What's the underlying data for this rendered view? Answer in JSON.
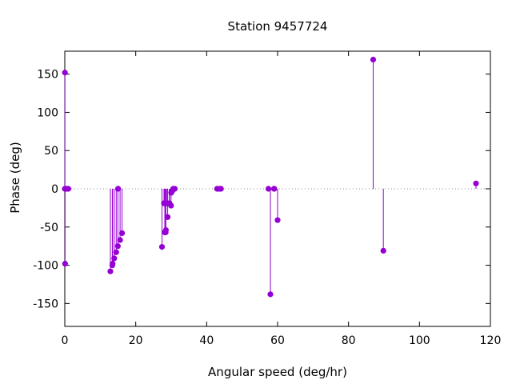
{
  "chart_data": {
    "type": "scatter",
    "style": "impulses-with-points",
    "title": "Station 9457724",
    "xlabel": "Angular speed (deg/hr)",
    "ylabel": "Phase (deg)",
    "xlim": [
      0,
      120
    ],
    "ylim": [
      -180,
      180
    ],
    "xticks": [
      0,
      20,
      40,
      60,
      80,
      100,
      120
    ],
    "yticks": [
      -150,
      -100,
      -50,
      0,
      50,
      100,
      150
    ],
    "grid": false,
    "zero_line": "dotted",
    "series": [
      {
        "color": "#9400d3",
        "x": [
          0.0,
          0.04,
          0.08,
          0.5,
          0.6,
          1.0,
          12.85,
          13.4,
          13.47,
          13.94,
          14.5,
          14.96,
          15.0,
          15.04,
          15.59,
          16.14,
          27.4,
          27.97,
          28.0,
          28.2,
          28.44,
          28.51,
          28.7,
          29.0,
          29.46,
          29.53,
          29.96,
          30.0,
          30.04,
          30.41,
          30.55,
          31.02,
          42.93,
          43.48,
          43.95,
          44.03,
          57.42,
          57.97,
          58.98,
          59.07,
          60.0,
          86.95,
          89.82,
          115.94
        ],
        "y": [
          0,
          152,
          -98,
          0,
          0,
          0,
          -108,
          -100,
          -98,
          -91,
          -83,
          -75,
          0,
          0,
          -67,
          -58,
          -76,
          -19,
          -19,
          -57,
          -57,
          -54,
          -19,
          -37,
          -19,
          -19,
          -22,
          -5,
          -5,
          -2,
          0,
          0,
          0,
          0,
          0,
          0,
          0,
          -138,
          0,
          0,
          -41,
          169,
          -81,
          7
        ]
      }
    ]
  }
}
